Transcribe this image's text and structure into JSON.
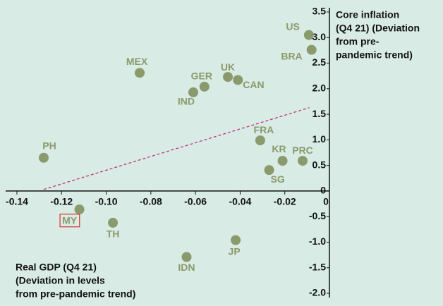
{
  "chart_data": {
    "type": "scatter",
    "labels": [
      "US",
      "BRA",
      "MEX",
      "UK",
      "CAN",
      "GER",
      "IND",
      "FRA",
      "KR",
      "PRC",
      "SG",
      "PH",
      "MY",
      "TH",
      "JP",
      "IDN"
    ],
    "x": [
      -0.0092,
      -0.008,
      -0.085,
      -0.0455,
      -0.041,
      -0.056,
      -0.061,
      -0.031,
      -0.021,
      -0.012,
      -0.027,
      -0.128,
      -0.112,
      -0.097,
      -0.042,
      -0.064
    ],
    "values": [
      3.05,
      2.76,
      2.31,
      2.23,
      2.17,
      2.04,
      1.93,
      0.99,
      0.59,
      0.59,
      0.41,
      0.65,
      -0.36,
      -0.62,
      -0.96,
      -1.29
    ],
    "color": "#8a9a6c",
    "highlight": [
      "MY"
    ],
    "highlight_color": "#e03030",
    "trendline": {
      "x": [
        -0.128,
        -0.009
      ],
      "y": [
        0.03,
        1.63
      ],
      "color": "#c2307a"
    },
    "xlim": [
      -0.14,
      0
    ],
    "ylim": [
      -2,
      3.5
    ],
    "xticks": [
      -0.14,
      -0.12,
      {
        "value": -0.1,
        "label": "-0.10"
      },
      -0.08,
      -0.06,
      -0.04,
      -0.02,
      0
    ],
    "yticks": [
      {
        "value": 3.5,
        "label": "3.5"
      },
      {
        "value": 3,
        "label": "3.0"
      },
      2.5,
      {
        "value": 2,
        "label": "2.0"
      },
      1.5,
      {
        "value": 1,
        "label": "1.0"
      },
      0.5,
      0,
      -0.5,
      {
        "value": -1,
        "label": "-1.0"
      },
      -1.5,
      {
        "value": -2,
        "label": "-2.0"
      }
    ],
    "y_label": [
      "Core inflation",
      "(Q4 21) (Deviation",
      "from pre-",
      "pandemic trend)"
    ],
    "x_label": [
      "Real GDP (Q4 21)",
      "(Deviation in levels",
      "from pre-pandemic trend)"
    ]
  }
}
